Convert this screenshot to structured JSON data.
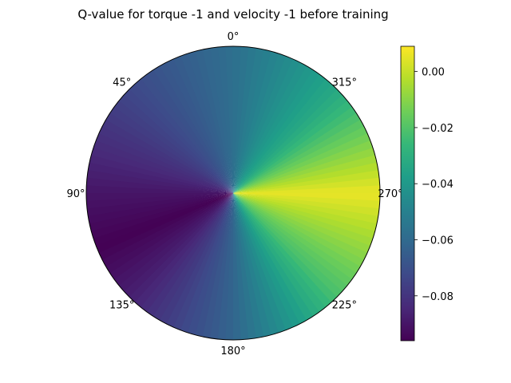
{
  "chart_data": {
    "type": "heatmap",
    "subtype": "polar",
    "title": "Q-value for torque -1 and velocity -1 before training",
    "angular_axis": {
      "zero_location": "top",
      "direction": "counterclockwise",
      "tick_labels": [
        "0°",
        "45°",
        "90°",
        "135°",
        "180°",
        "225°",
        "270°",
        "315°"
      ]
    },
    "colormap": "viridis",
    "colorbar": {
      "range": [
        -0.096,
        0.009
      ],
      "ticks": [
        0.0,
        -0.02,
        -0.04,
        -0.06,
        -0.08
      ],
      "tick_labels": [
        "0.00",
        "−0.02",
        "−0.04",
        "−0.06",
        "−0.08"
      ]
    },
    "q_by_angle": {
      "angles_deg": [
        0,
        45,
        90,
        112,
        135,
        180,
        225,
        270,
        315,
        360
      ],
      "values": [
        -0.058,
        -0.073,
        -0.09,
        -0.096,
        -0.087,
        -0.062,
        -0.022,
        0.006,
        -0.033,
        -0.058
      ]
    }
  }
}
